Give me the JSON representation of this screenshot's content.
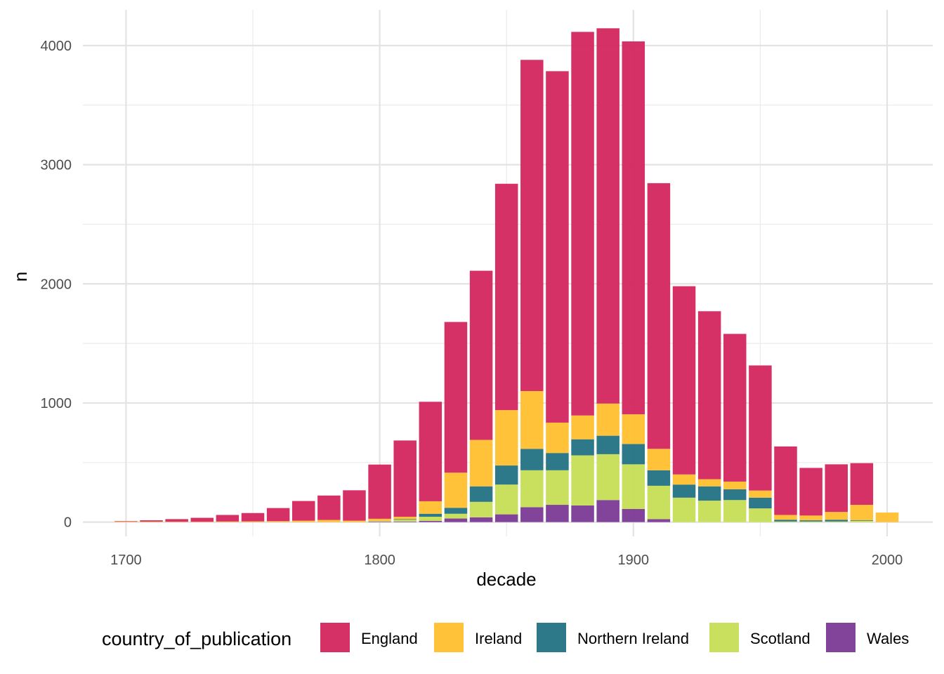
{
  "chart_data": {
    "type": "bar",
    "stacked": true,
    "xlabel": "decade",
    "ylabel": "n",
    "xlim": [
      1683,
      2018
    ],
    "ylim": [
      -120,
      4300
    ],
    "x_ticks": [
      1700,
      1800,
      1900,
      2000
    ],
    "x_tick_labels": [
      "1700",
      "1800",
      "1900",
      "2000"
    ],
    "y_ticks": [
      0,
      1000,
      2000,
      3000,
      4000
    ],
    "y_tick_labels": [
      "0",
      "1000",
      "2000",
      "3000",
      "4000"
    ],
    "grid": true,
    "legend": {
      "title": "country_of_publication",
      "position": "bottom",
      "entries": [
        "England",
        "Ireland",
        "Northern Ireland",
        "Scotland",
        "Wales"
      ]
    },
    "stack_order": [
      "Wales",
      "Scotland",
      "Northern Ireland",
      "Ireland",
      "England"
    ],
    "x": [
      1700,
      1710,
      1720,
      1730,
      1740,
      1750,
      1760,
      1770,
      1780,
      1790,
      1800,
      1810,
      1820,
      1830,
      1840,
      1850,
      1860,
      1870,
      1880,
      1890,
      1900,
      1910,
      1920,
      1930,
      1940,
      1950,
      1960,
      1970,
      1980,
      1990,
      2000
    ],
    "series": [
      {
        "name": "England",
        "color": "#D4265E",
        "values": [
          4,
          11,
          22,
          33,
          55,
          70,
          110,
          165,
          205,
          255,
          455,
          640,
          835,
          1265,
          1420,
          1900,
          2780,
          2950,
          3220,
          3150,
          3130,
          2230,
          1580,
          1410,
          1240,
          1050,
          575,
          400,
          400,
          350,
          0
        ]
      },
      {
        "name": "Ireland",
        "color": "#FFBF2E",
        "values": [
          4,
          4,
          3,
          3,
          5,
          6,
          8,
          12,
          18,
          12,
          18,
          20,
          105,
          295,
          390,
          465,
          485,
          255,
          200,
          270,
          250,
          180,
          85,
          60,
          65,
          60,
          40,
          40,
          65,
          130,
          80
        ]
      },
      {
        "name": "Northern Ireland",
        "color": "#237283",
        "values": [
          0,
          0,
          0,
          0,
          0,
          0,
          0,
          0,
          0,
          0,
          0,
          5,
          25,
          50,
          130,
          160,
          180,
          145,
          135,
          155,
          170,
          130,
          110,
          120,
          90,
          90,
          15,
          10,
          15,
          5,
          0
        ]
      },
      {
        "name": "Scotland",
        "color": "#C6DE55",
        "values": [
          0,
          0,
          0,
          0,
          0,
          0,
          0,
          0,
          0,
          0,
          5,
          15,
          35,
          40,
          130,
          250,
          310,
          290,
          420,
          385,
          375,
          280,
          205,
          180,
          185,
          115,
          5,
          5,
          5,
          10,
          0
        ]
      },
      {
        "name": "Wales",
        "color": "#7B3996",
        "values": [
          0,
          0,
          0,
          0,
          0,
          0,
          0,
          0,
          0,
          0,
          5,
          5,
          10,
          30,
          40,
          65,
          125,
          145,
          140,
          185,
          110,
          25,
          0,
          0,
          0,
          0,
          0,
          0,
          0,
          0,
          0
        ]
      }
    ]
  }
}
